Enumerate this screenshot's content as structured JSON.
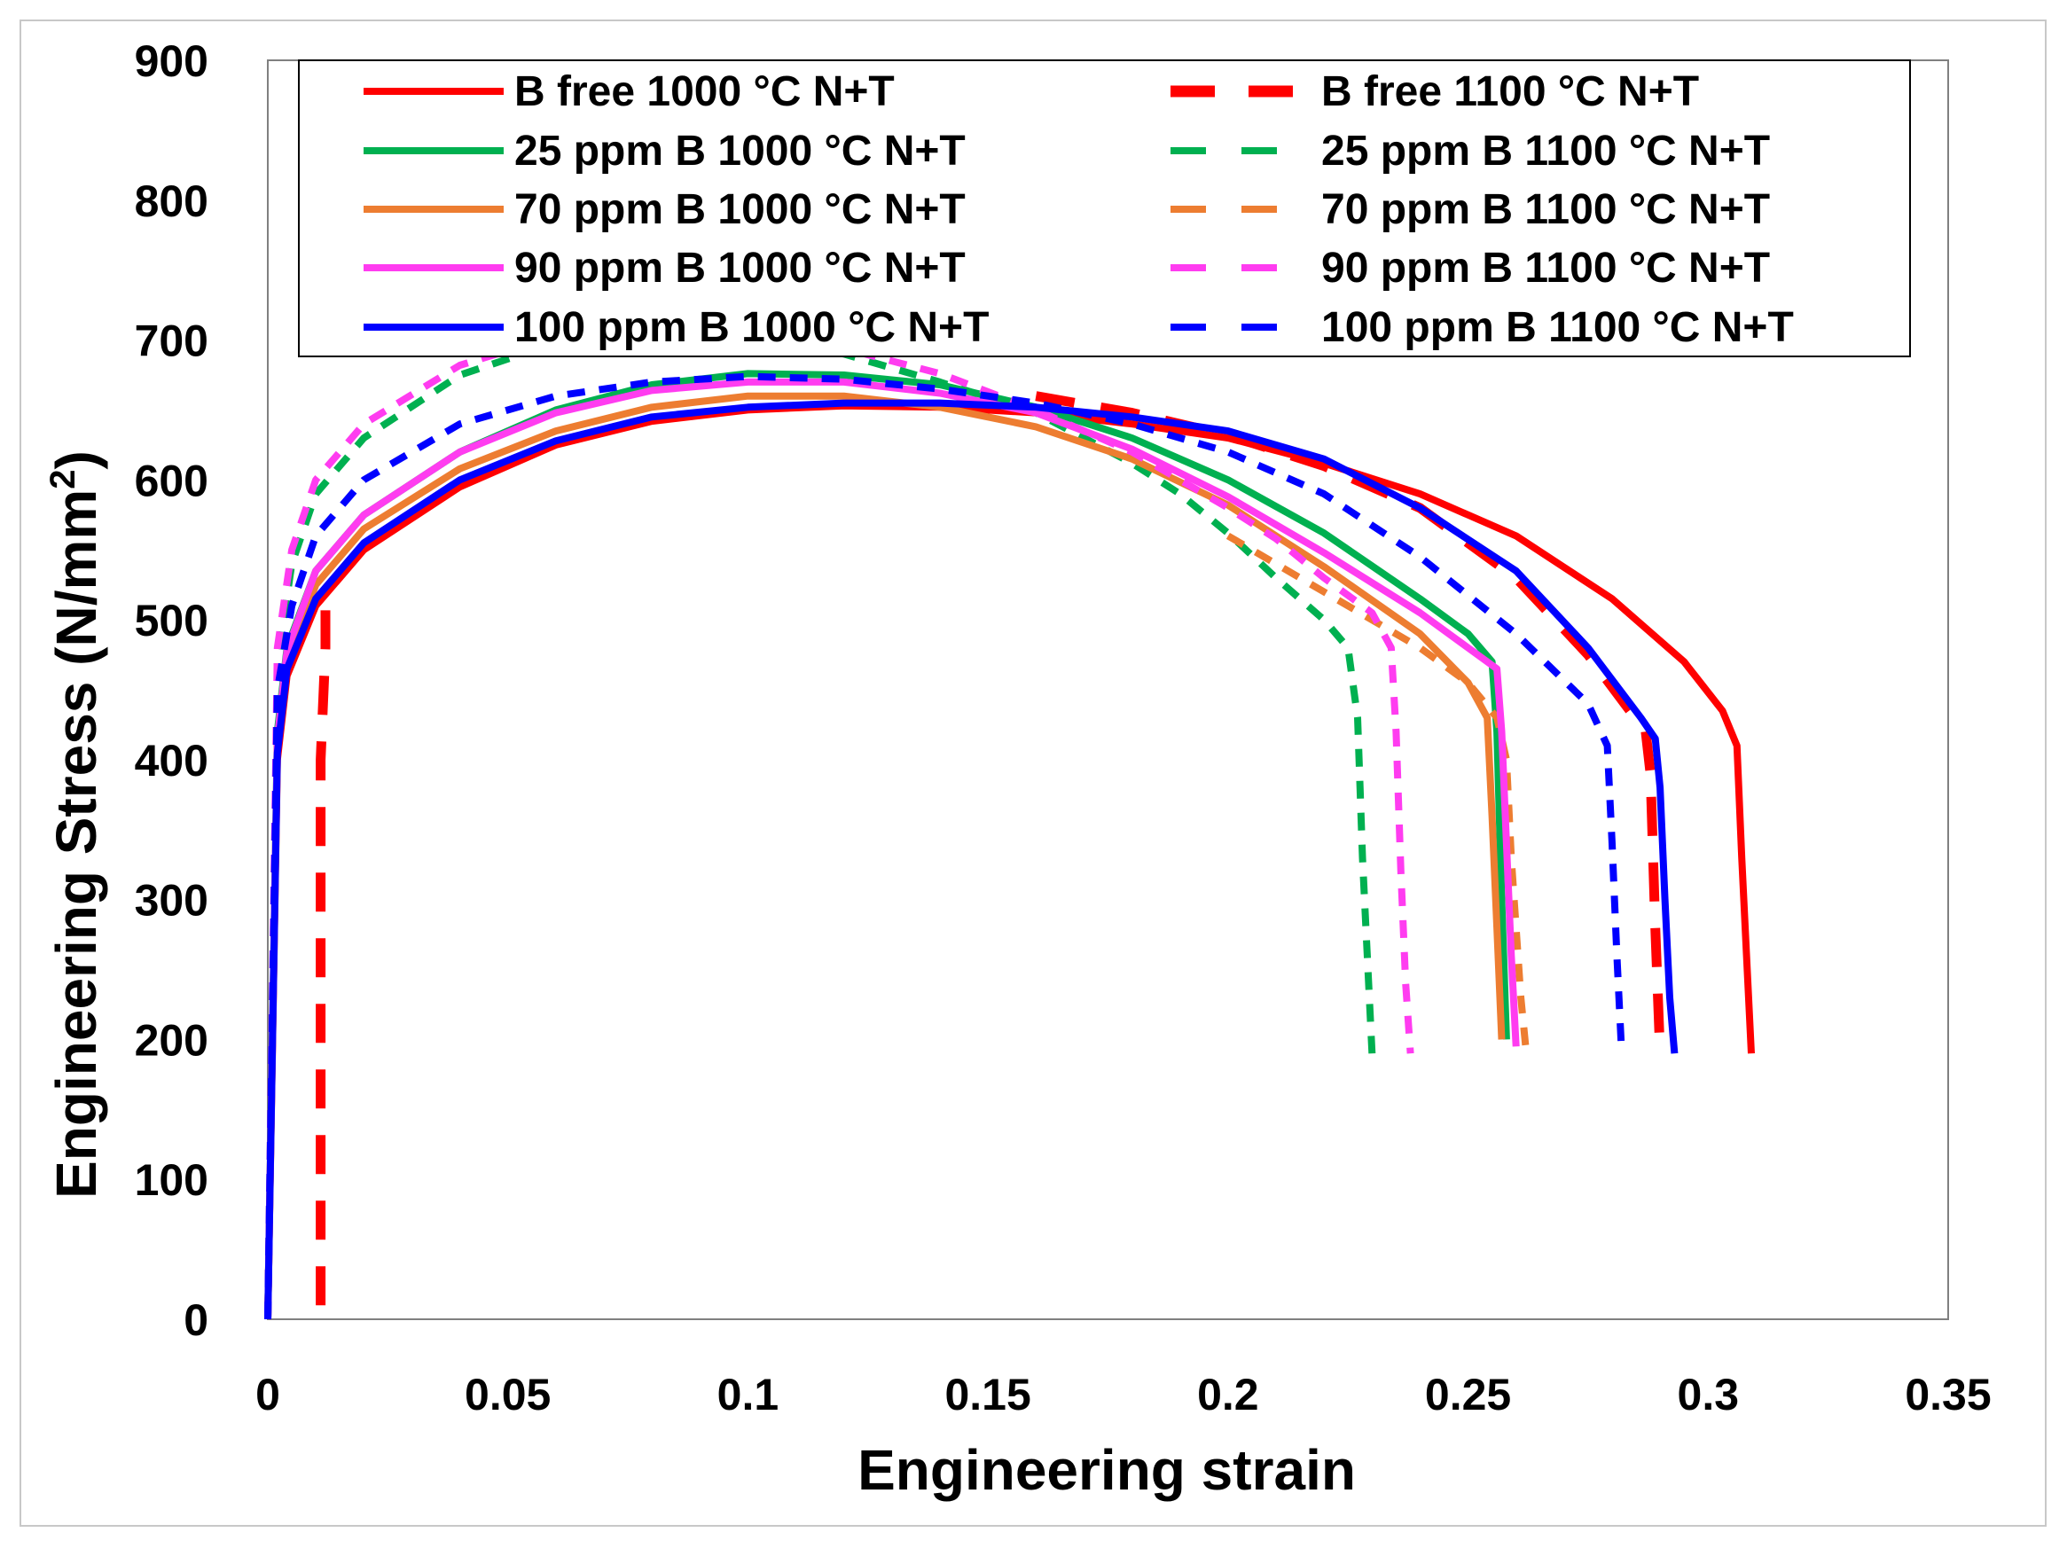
{
  "chart_data": {
    "type": "line",
    "title": "",
    "xlabel": "Engineering strain",
    "ylabel_main": "Engineering Stress (N/mm",
    "ylabel_sup": "2",
    "ylabel_close": ")",
    "xlim": [
      0,
      0.35
    ],
    "ylim": [
      0,
      900
    ],
    "xticks": [
      "0",
      "0.05",
      "0.1",
      "0.15",
      "0.2",
      "0.25",
      "0.3",
      "0.35"
    ],
    "yticks": [
      "0",
      "100",
      "200",
      "300",
      "400",
      "500",
      "600",
      "700",
      "800",
      "900"
    ],
    "grid": false,
    "legend_position": "top",
    "series": [
      {
        "name": "B free 1000 °C N+T",
        "color": "#ff0000",
        "dash": "solid",
        "x": [
          0,
          0.002,
          0.004,
          0.01,
          0.02,
          0.04,
          0.06,
          0.08,
          0.1,
          0.12,
          0.14,
          0.16,
          0.18,
          0.2,
          0.22,
          0.24,
          0.26,
          0.28,
          0.295,
          0.303,
          0.306,
          0.307,
          0.308,
          0.309
        ],
        "y": [
          0,
          400,
          460,
          510,
          550,
          595,
          625,
          642,
          650,
          653,
          652,
          648,
          640,
          630,
          612,
          590,
          560,
          515,
          470,
          435,
          410,
          330,
          260,
          190
        ]
      },
      {
        "name": "B free 1100 °C N+T",
        "color": "#ff0000",
        "dash": "long",
        "x": [
          0.011,
          0.011,
          0.011,
          0.012,
          0.012
        ],
        "y": [
          10,
          200,
          400,
          480,
          520
        ]
      },
      {
        "name": "",
        "color": "#ff0000",
        "dash": "long",
        "x": [
          0.16,
          0.18,
          0.2,
          0.22,
          0.24,
          0.26,
          0.275,
          0.287,
          0.288,
          0.289,
          0.29
        ],
        "y": [
          660,
          648,
          632,
          610,
          580,
          530,
          475,
          420,
          390,
          280,
          190
        ]
      },
      {
        "name": "25 ppm B 1000 °C N+T",
        "color": "#00b050",
        "dash": "solid",
        "x": [
          0,
          0.002,
          0.004,
          0.01,
          0.02,
          0.04,
          0.06,
          0.08,
          0.1,
          0.12,
          0.14,
          0.16,
          0.18,
          0.2,
          0.22,
          0.24,
          0.25,
          0.255,
          0.256,
          0.257,
          0.258
        ],
        "y": [
          0,
          420,
          480,
          535,
          575,
          620,
          650,
          668,
          676,
          675,
          668,
          652,
          630,
          600,
          562,
          515,
          490,
          470,
          420,
          300,
          200
        ]
      },
      {
        "name": "25 ppm B 1100 °C N+T",
        "color": "#00b050",
        "dash": "short",
        "x": [
          0,
          0.002,
          0.005,
          0.01,
          0.02,
          0.04,
          0.06,
          0.08,
          0.1,
          0.12,
          0.14,
          0.16,
          0.18,
          0.19,
          0.2,
          0.21,
          0.22,
          0.225,
          0.227,
          0.228,
          0.229,
          0.23
        ],
        "y": [
          0,
          470,
          540,
          590,
          630,
          675,
          698,
          705,
          702,
          690,
          670,
          648,
          612,
          590,
          562,
          530,
          500,
          480,
          430,
          330,
          260,
          190
        ]
      },
      {
        "name": "70 ppm B 1000 °C N+T",
        "color": "#ed7d31",
        "dash": "solid",
        "x": [
          0,
          0.002,
          0.004,
          0.01,
          0.02,
          0.04,
          0.06,
          0.08,
          0.1,
          0.12,
          0.14,
          0.16,
          0.18,
          0.2,
          0.22,
          0.24,
          0.25,
          0.254,
          0.255,
          0.256,
          0.257
        ],
        "y": [
          0,
          410,
          470,
          525,
          565,
          608,
          635,
          652,
          660,
          660,
          652,
          638,
          615,
          582,
          538,
          490,
          455,
          430,
          360,
          280,
          200
        ]
      },
      {
        "name": "70 ppm B 1100 °C N+T",
        "color": "#ed7d31",
        "dash": "short",
        "x": [
          0.2,
          0.22,
          0.24,
          0.25,
          0.256,
          0.258,
          0.259,
          0.26,
          0.261,
          0.262
        ],
        "y": [
          560,
          520,
          480,
          455,
          430,
          400,
          330,
          280,
          230,
          195
        ]
      },
      {
        "name": "90 ppm B 1000 °C N+T",
        "color": "#ff3cf0",
        "dash": "solid",
        "x": [
          0,
          0.002,
          0.004,
          0.01,
          0.02,
          0.04,
          0.06,
          0.08,
          0.1,
          0.12,
          0.14,
          0.16,
          0.18,
          0.2,
          0.22,
          0.24,
          0.25,
          0.256,
          0.257,
          0.258,
          0.259,
          0.26
        ],
        "y": [
          0,
          415,
          478,
          535,
          575,
          620,
          648,
          664,
          670,
          670,
          662,
          648,
          622,
          588,
          548,
          505,
          480,
          465,
          420,
          340,
          260,
          195
        ]
      },
      {
        "name": "90 ppm B 1100 °C N+T",
        "color": "#ff3cf0",
        "dash": "short",
        "x": [
          0,
          0.002,
          0.005,
          0.01,
          0.02,
          0.04,
          0.06,
          0.08,
          0.1,
          0.12,
          0.14,
          0.16,
          0.18,
          0.2,
          0.21,
          0.22,
          0.23,
          0.234,
          0.235,
          0.236,
          0.237,
          0.238
        ],
        "y": [
          0,
          480,
          550,
          600,
          640,
          682,
          703,
          710,
          706,
          694,
          676,
          650,
          620,
          580,
          558,
          530,
          505,
          480,
          420,
          320,
          240,
          190
        ]
      },
      {
        "name": "100 ppm B 1000 °C N+T",
        "color": "#0000ff",
        "dash": "solid",
        "x": [
          0,
          0.002,
          0.004,
          0.01,
          0.02,
          0.04,
          0.06,
          0.08,
          0.1,
          0.12,
          0.14,
          0.16,
          0.18,
          0.2,
          0.22,
          0.24,
          0.26,
          0.275,
          0.286,
          0.289,
          0.29,
          0.291,
          0.292,
          0.293
        ],
        "y": [
          0,
          405,
          465,
          515,
          555,
          600,
          628,
          645,
          652,
          655,
          655,
          652,
          645,
          635,
          615,
          580,
          535,
          480,
          430,
          415,
          380,
          300,
          230,
          190
        ]
      },
      {
        "name": "100 ppm B 1100 °C N+T",
        "color": "#0000ff",
        "dash": "short",
        "x": [
          0,
          0.002,
          0.005,
          0.01,
          0.02,
          0.04,
          0.06,
          0.08,
          0.1,
          0.12,
          0.14,
          0.16,
          0.18,
          0.2,
          0.22,
          0.24,
          0.26,
          0.275,
          0.279,
          0.28,
          0.281,
          0.282
        ],
        "y": [
          0,
          450,
          510,
          560,
          600,
          640,
          660,
          670,
          674,
          672,
          665,
          655,
          640,
          620,
          590,
          545,
          490,
          440,
          410,
          340,
          260,
          190
        ]
      }
    ]
  }
}
